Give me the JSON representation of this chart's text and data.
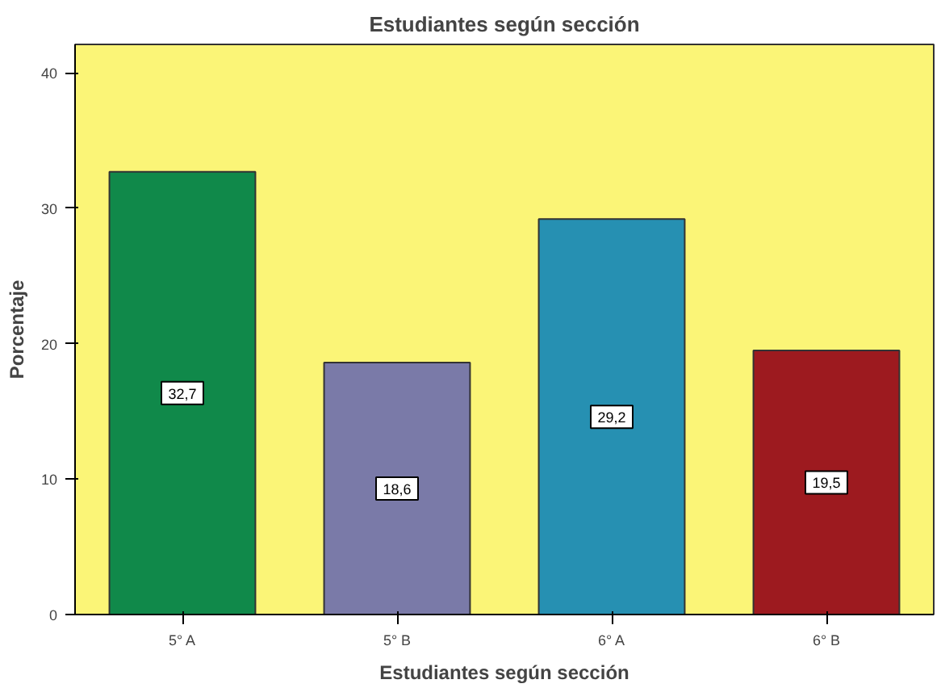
{
  "chart_data": {
    "type": "bar",
    "title": "Estudiantes según sección",
    "xlabel": "Estudiantes según sección",
    "ylabel": "Porcentaje",
    "categories": [
      "5° A",
      "5° B",
      "6° A",
      "6° B"
    ],
    "values": [
      32.7,
      18.6,
      29.2,
      19.5
    ],
    "colors": [
      "#10894a",
      "#7a7aa8",
      "#2690b2",
      "#9d1a1f"
    ],
    "value_labels": [
      "32,7",
      "18,6",
      "29,2",
      "19,5"
    ],
    "ylim": [
      0,
      42.1
    ],
    "yticks": [
      0,
      10,
      20,
      30,
      40
    ],
    "grid": false
  }
}
